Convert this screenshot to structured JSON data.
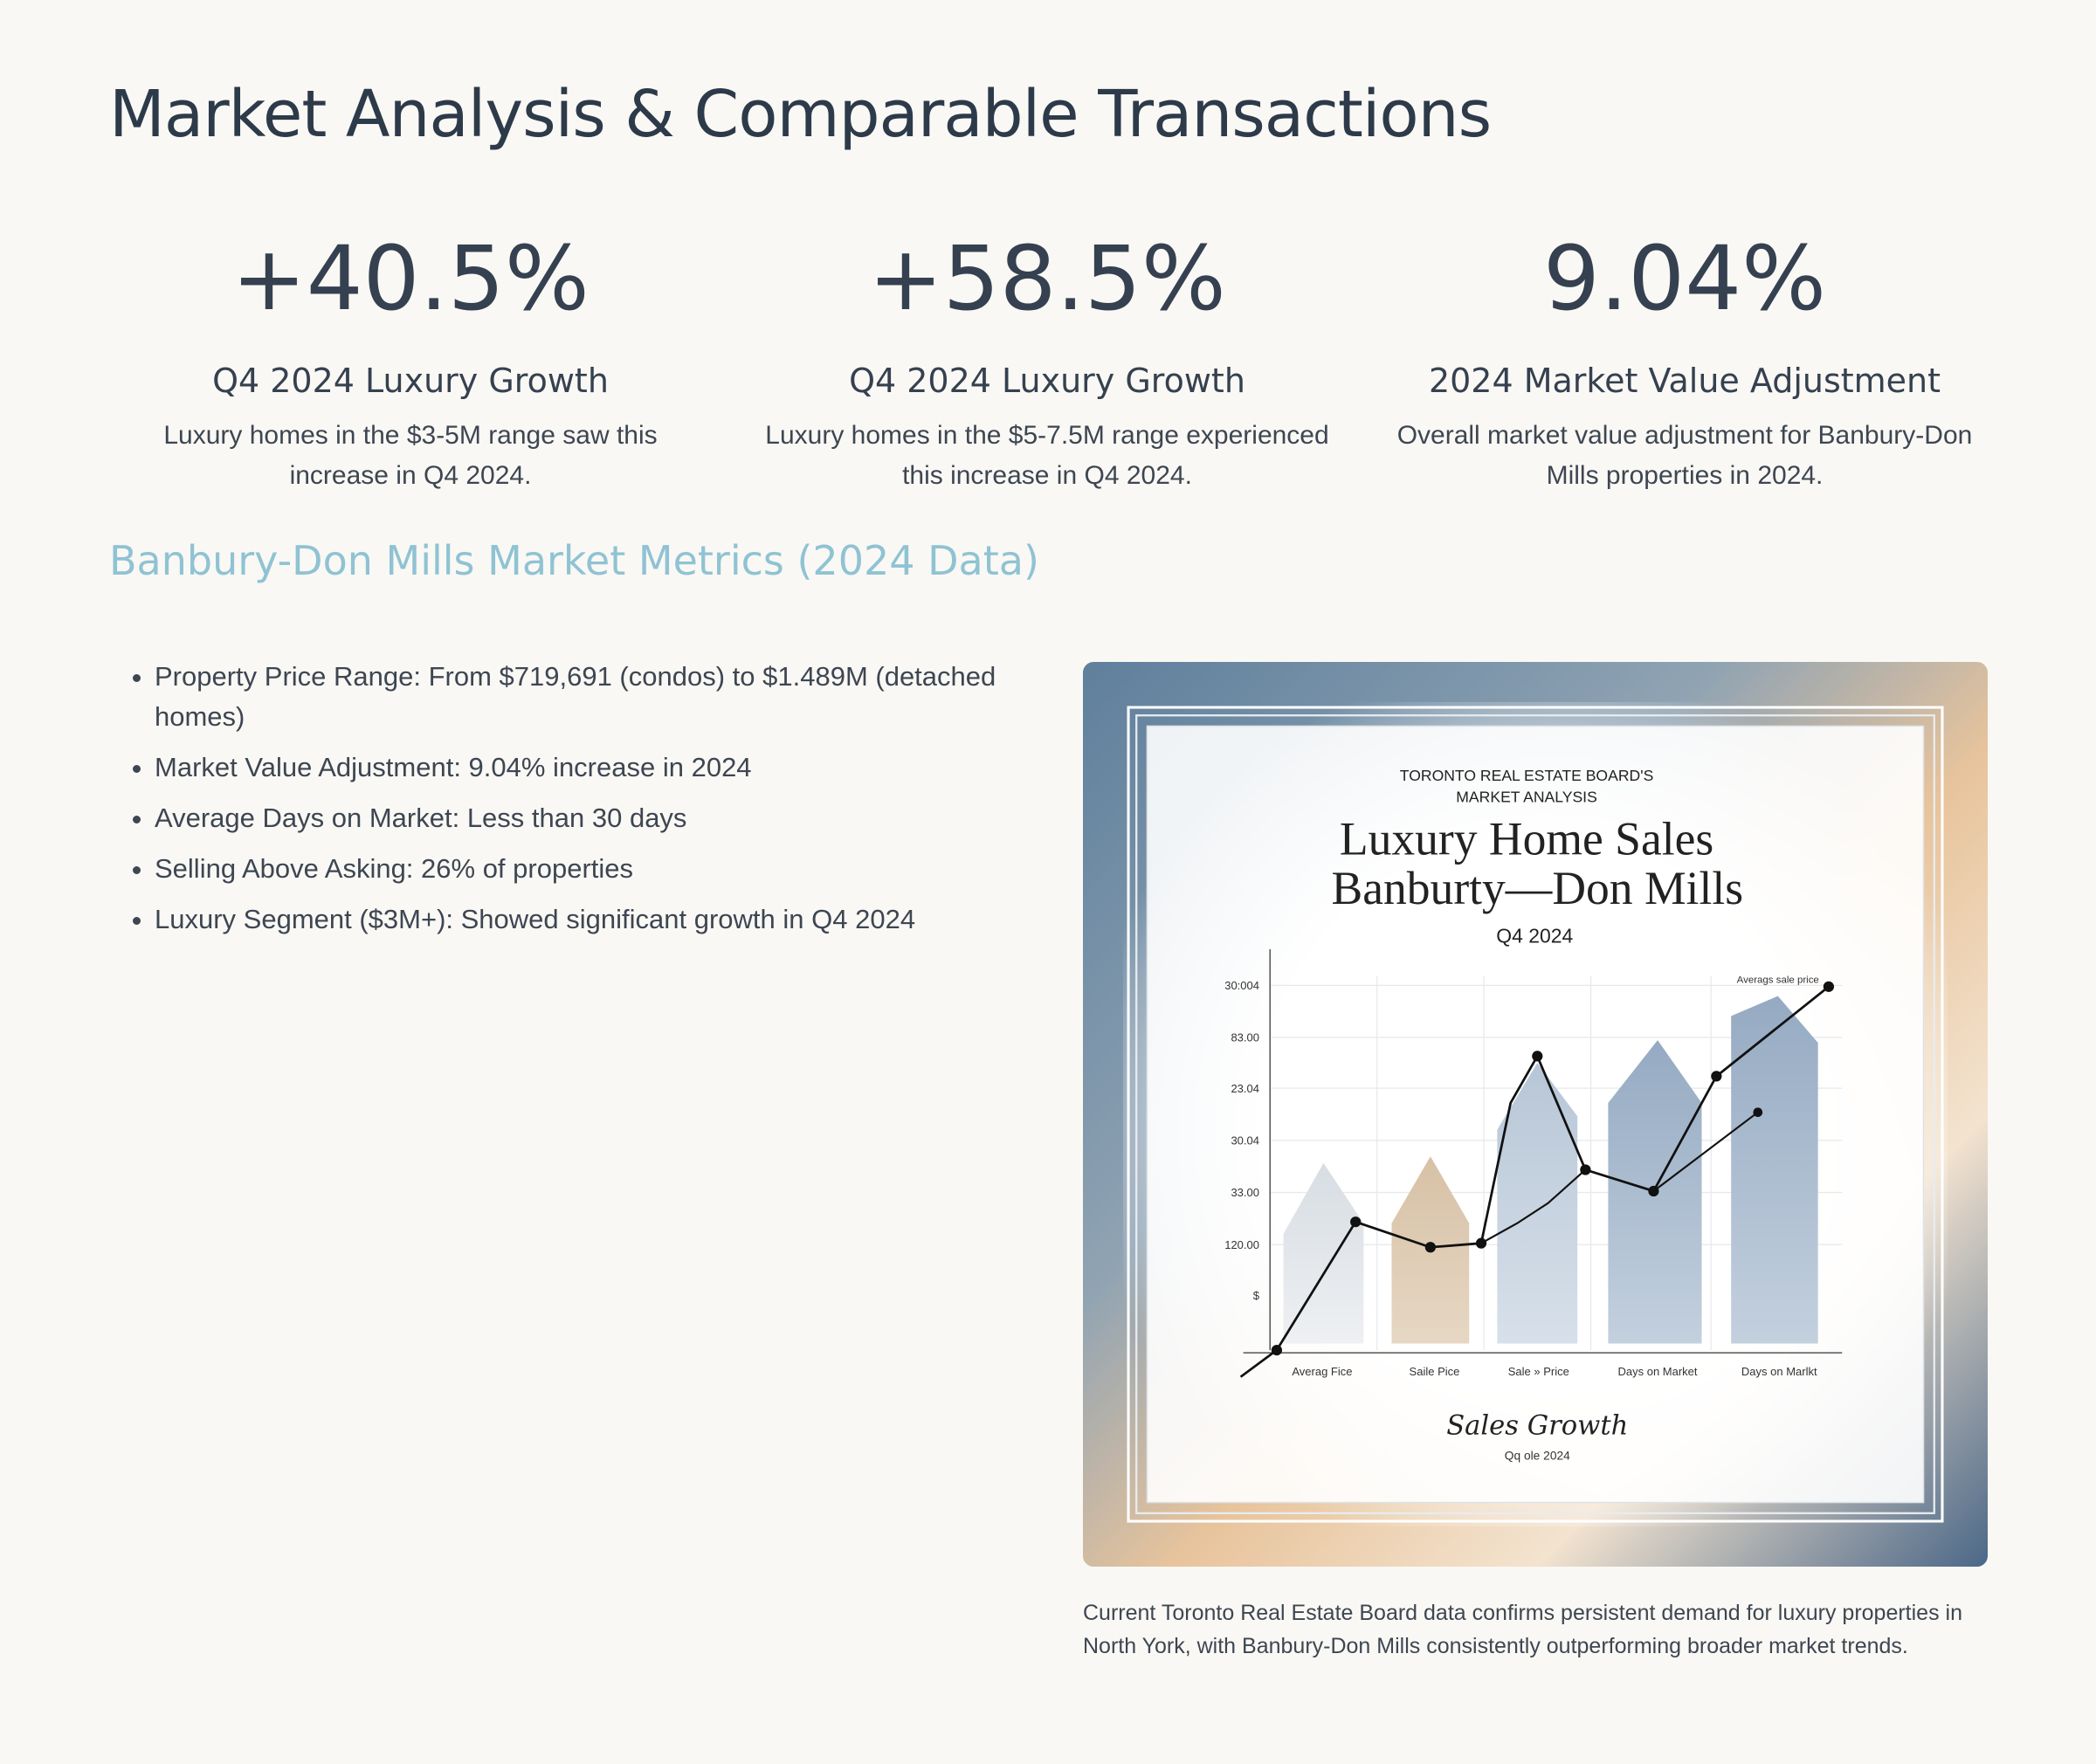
{
  "header": {
    "title": "Market Analysis & Comparable Transactions"
  },
  "stats": [
    {
      "value": "+40.5%",
      "label": "Q4 2024 Luxury Growth",
      "description": "Luxury homes in the $3-5M range saw this increase in Q4 2024."
    },
    {
      "value": "+58.5%",
      "label": "Q4 2024 Luxury Growth",
      "description": "Luxury homes in the $5-7.5M range experienced this increase in Q4 2024."
    },
    {
      "value": "9.04%",
      "label": "2024 Market Value Adjustment",
      "description": "Overall market value adjustment for Banbury-Don Mills properties in 2024."
    }
  ],
  "section": {
    "title": "Banbury-Don Mills Market Metrics (2024 Data)",
    "bullets": [
      "Property Price Range: From $719,691 (condos) to $1.489M (detached homes)",
      "Market Value Adjustment: 9.04% increase in 2024",
      "Average Days on Market: Less than 30 days",
      "Selling Above Asking: 26% of properties",
      "Luxury Segment ($3M+): Showed significant growth in Q4 2024"
    ]
  },
  "figure": {
    "kicker": [
      "TORONTO REAL ESTATE BOARD'S",
      "MARKET ANALYSIS"
    ],
    "heading": [
      "Luxury Home Sales",
      "Banburty—Don Mills"
    ],
    "period": "Q4 2024",
    "y_labels": [
      "30:004",
      "83.00",
      "23.04",
      "30.04",
      "33.00",
      "120.00",
      "$"
    ],
    "x_labels": [
      "Averag Fice",
      "Saile Pice",
      "Sale » Price",
      "Days on Market",
      "Days on Marlkt"
    ],
    "legend": "Averags sale price",
    "signature": "Sales Growth",
    "signature_sub": "Qq ole 2024"
  },
  "caption": "Current Toronto Real Estate Board data confirms persistent demand for luxury properties in North York, with Banbury-Don Mills consistently outperforming broader market trends."
}
